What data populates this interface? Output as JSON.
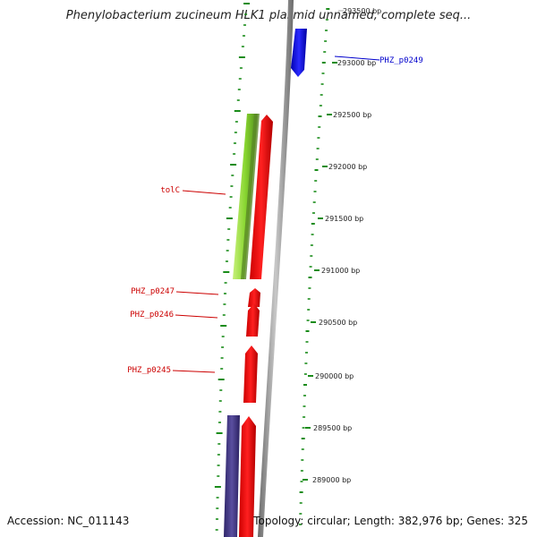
{
  "title": "Phenylobacterium zucineum HLK1 plasmid unnamed, complete seq...",
  "footer": {
    "accession": "Accession: NC_011143",
    "summary": "Topology: circular; Length: 382,976 bp; Genes: 325"
  },
  "scale_ticks": [
    {
      "label": "293500 bp",
      "bp": 293500,
      "faded": true
    },
    {
      "label": "293000 bp",
      "bp": 293000
    },
    {
      "label": "292500 bp",
      "bp": 292500
    },
    {
      "label": "292000 bp",
      "bp": 292000
    },
    {
      "label": "291500 bp",
      "bp": 291500
    },
    {
      "label": "291000 bp",
      "bp": 291000
    },
    {
      "label": "290500 bp",
      "bp": 290500
    },
    {
      "label": "290000 bp",
      "bp": 290000
    },
    {
      "label": "289500 bp",
      "bp": 289500
    },
    {
      "label": "289000 bp",
      "bp": 289000
    }
  ],
  "gene_labels": [
    {
      "text": "PHZ_p0249",
      "color": "#0000cc",
      "side": "right"
    },
    {
      "text": "tolC",
      "color": "#cc0000",
      "side": "left"
    },
    {
      "text": "PHZ_p0247",
      "color": "#cc0000",
      "side": "left"
    },
    {
      "text": "PHZ_p0246",
      "color": "#cc0000",
      "side": "left"
    },
    {
      "text": "PHZ_p0245",
      "color": "#cc0000",
      "side": "left"
    }
  ],
  "colors": {
    "forward_gene": "#ff0000",
    "reverse_gene_blue": "#1a1aff",
    "rna_green": "#99e633",
    "slate": "#4a3f8c",
    "backbone": "#8c8c8c",
    "tick_green": "#1a8c1a"
  }
}
